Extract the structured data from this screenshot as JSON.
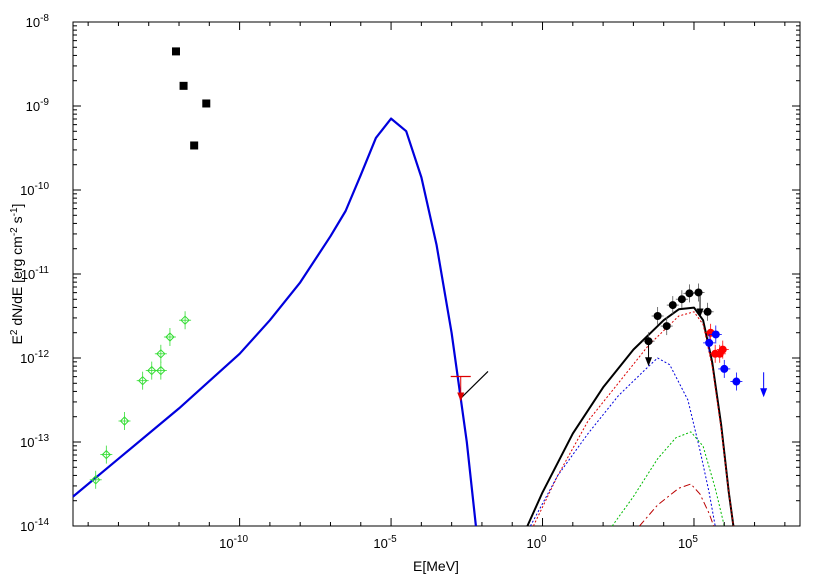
{
  "chart_data": {
    "type": "scatter",
    "title": "",
    "xlabel": "E[MeV]",
    "ylabel_parts": [
      "E",
      "2",
      " dN/dE [erg cm",
      "-2",
      " s",
      "-1",
      "]"
    ],
    "xscale": "log",
    "yscale": "log",
    "xlim_log10": [
      -15.5,
      8.5
    ],
    "ylim_log10": [
      -14,
      -8
    ],
    "x_ticks_log10": [
      -10,
      -5,
      0,
      5
    ],
    "y_ticks_log10": [
      -14,
      -13,
      -12,
      -11,
      -10,
      -9,
      -8
    ],
    "grid": false,
    "legend": "none",
    "series": [
      {
        "kind": "points",
        "marker": "square",
        "color": "#000000",
        "points": [
          [
            -12.1,
            -8.35
          ],
          [
            -11.85,
            -8.76
          ],
          [
            -11.1,
            -8.97
          ],
          [
            -11.5,
            -9.47
          ]
        ]
      },
      {
        "kind": "points",
        "marker": "diamond-open",
        "color": "#33dd33",
        "points": [
          [
            -14.75,
            -13.45
          ],
          [
            -14.4,
            -13.15
          ],
          [
            -13.8,
            -12.75
          ],
          [
            -13.2,
            -12.27
          ],
          [
            -12.9,
            -12.15
          ],
          [
            -12.6,
            -11.95
          ],
          [
            -12.6,
            -12.15
          ],
          [
            -12.3,
            -11.75
          ],
          [
            -11.8,
            -11.55
          ]
        ]
      },
      {
        "kind": "points",
        "marker": "circle",
        "color": "#000000",
        "points": [
          [
            3.5,
            -11.8
          ],
          [
            3.8,
            -11.5
          ],
          [
            4.1,
            -11.62
          ],
          [
            4.3,
            -11.37
          ],
          [
            4.6,
            -11.3
          ],
          [
            4.85,
            -11.23
          ],
          [
            5.15,
            -11.22
          ],
          [
            5.45,
            -11.45
          ]
        ]
      },
      {
        "kind": "points",
        "marker": "circle",
        "color": "#ff0000",
        "points": [
          [
            5.55,
            -11.7
          ],
          [
            5.7,
            -11.95
          ],
          [
            5.85,
            -11.95
          ],
          [
            5.95,
            -11.9
          ]
        ]
      },
      {
        "kind": "points",
        "marker": "circle",
        "color": "#0000ff",
        "points": [
          [
            5.5,
            -11.82
          ],
          [
            5.72,
            -11.72
          ],
          [
            6.0,
            -12.13
          ],
          [
            6.4,
            -12.28
          ]
        ]
      },
      {
        "kind": "upper-limits",
        "color": "#000000",
        "points": [
          [
            3.5,
            -11.8
          ],
          [
            5.2,
            -11.22
          ]
        ]
      },
      {
        "kind": "upper-limits",
        "color": "#0000ff",
        "points": [
          [
            7.3,
            -12.17
          ]
        ]
      },
      {
        "kind": "upper-limits",
        "color": "#dd0000",
        "points": [
          [
            -2.7,
            -12.22
          ]
        ]
      },
      {
        "kind": "segment",
        "color": "#000000",
        "points": [
          [
            -2.7,
            -12.48
          ],
          [
            -1.8,
            -12.16
          ]
        ]
      },
      {
        "kind": "curve",
        "color": "#0000dd",
        "style": "solid",
        "width": 2.2,
        "points": [
          [
            -15.5,
            -13.65
          ],
          [
            -14,
            -13.2
          ],
          [
            -12,
            -12.6
          ],
          [
            -10,
            -11.95
          ],
          [
            -9,
            -11.55
          ],
          [
            -8,
            -11.1
          ],
          [
            -7,
            -10.55
          ],
          [
            -6.5,
            -10.25
          ],
          [
            -6,
            -9.82
          ],
          [
            -5.5,
            -9.38
          ],
          [
            -5,
            -9.15
          ],
          [
            -4.5,
            -9.3
          ],
          [
            -4,
            -9.85
          ],
          [
            -3.5,
            -10.65
          ],
          [
            -3,
            -11.7
          ],
          [
            -2.5,
            -13.0
          ],
          [
            -2.2,
            -14.0
          ]
        ]
      },
      {
        "kind": "curve",
        "color": "#000000",
        "style": "solid",
        "width": 2,
        "points": [
          [
            -0.5,
            -14.0
          ],
          [
            0,
            -13.6
          ],
          [
            1,
            -12.9
          ],
          [
            2,
            -12.35
          ],
          [
            3,
            -11.9
          ],
          [
            4,
            -11.55
          ],
          [
            4.5,
            -11.42
          ],
          [
            5,
            -11.4
          ],
          [
            5.3,
            -11.55
          ],
          [
            5.6,
            -12.05
          ],
          [
            5.9,
            -12.8
          ],
          [
            6.15,
            -13.6
          ],
          [
            6.3,
            -14.0
          ]
        ]
      },
      {
        "kind": "curve",
        "color": "#dd0000",
        "style": "dotted",
        "width": 1,
        "points": [
          [
            -0.3,
            -14.0
          ],
          [
            0.5,
            -13.4
          ],
          [
            1.5,
            -12.75
          ],
          [
            2.5,
            -12.3
          ],
          [
            3.5,
            -11.85
          ],
          [
            4.5,
            -11.5
          ],
          [
            5,
            -11.45
          ],
          [
            5.3,
            -11.6
          ],
          [
            5.6,
            -12.1
          ],
          [
            5.9,
            -12.85
          ],
          [
            6.15,
            -13.6
          ],
          [
            6.3,
            -14.0
          ]
        ]
      },
      {
        "kind": "curve",
        "color": "#0000dd",
        "style": "dotted",
        "width": 1,
        "points": [
          [
            -0.4,
            -14.0
          ],
          [
            0.5,
            -13.4
          ],
          [
            1.5,
            -12.9
          ],
          [
            2.5,
            -12.45
          ],
          [
            3.5,
            -12.1
          ],
          [
            3.8,
            -12.0
          ],
          [
            4.2,
            -12.08
          ],
          [
            4.8,
            -12.5
          ],
          [
            5.2,
            -13.1
          ],
          [
            5.5,
            -13.6
          ],
          [
            5.7,
            -14.0
          ]
        ]
      },
      {
        "kind": "curve",
        "color": "#00bb00",
        "style": "dotted",
        "width": 1,
        "points": [
          [
            2.3,
            -14.0
          ],
          [
            3,
            -13.65
          ],
          [
            3.8,
            -13.2
          ],
          [
            4.4,
            -12.95
          ],
          [
            4.9,
            -12.88
          ],
          [
            5.3,
            -13.05
          ],
          [
            5.7,
            -13.55
          ],
          [
            6.0,
            -14.0
          ]
        ]
      },
      {
        "kind": "curve",
        "color": "#bb0000",
        "style": "dashdot",
        "width": 1,
        "points": [
          [
            3.2,
            -14.0
          ],
          [
            3.8,
            -13.75
          ],
          [
            4.5,
            -13.55
          ],
          [
            4.9,
            -13.5
          ],
          [
            5.2,
            -13.62
          ],
          [
            5.5,
            -13.85
          ],
          [
            5.65,
            -14.0
          ]
        ]
      }
    ]
  }
}
